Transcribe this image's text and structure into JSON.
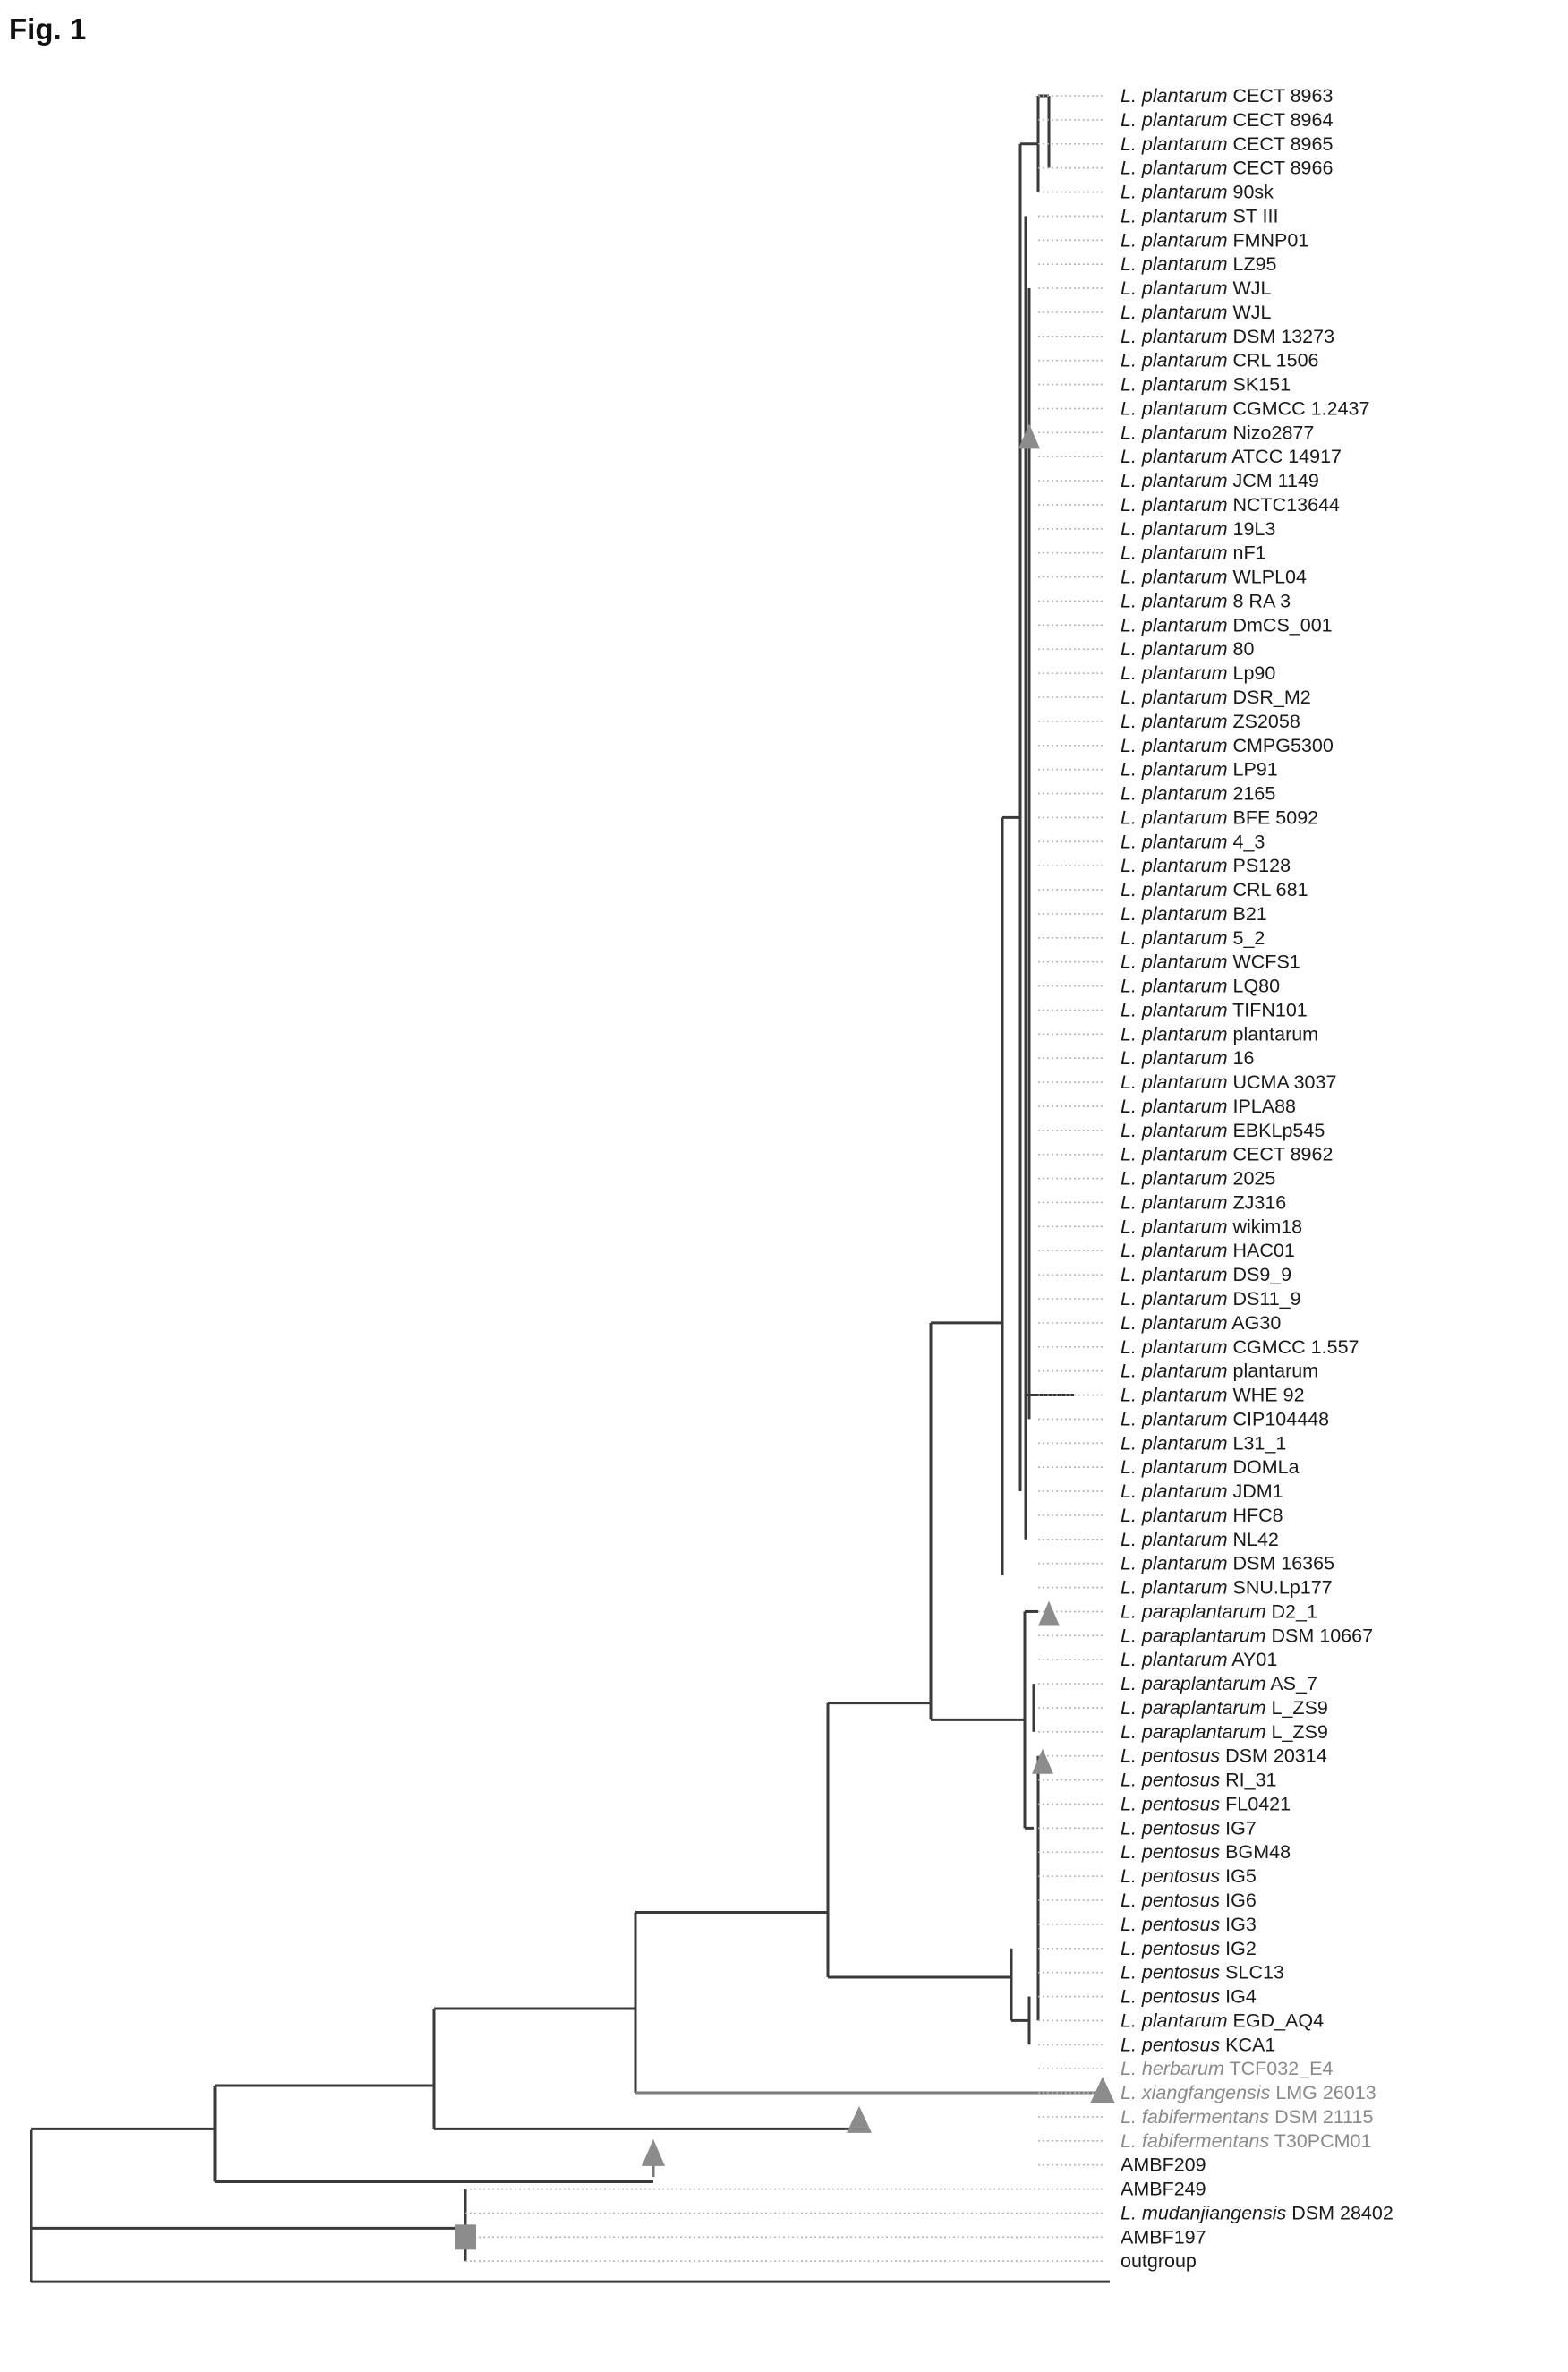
{
  "figure": {
    "title": "Fig. 1"
  },
  "tree": {
    "type": "phylogenetic-tree",
    "highlight_color": "#8c8c8c",
    "tips": [
      {
        "genus": "L.",
        "species": "plantarum",
        "strain": "CECT 8963"
      },
      {
        "genus": "L.",
        "species": "plantarum",
        "strain": "CECT 8964"
      },
      {
        "genus": "L.",
        "species": "plantarum",
        "strain": "CECT 8965"
      },
      {
        "genus": "L.",
        "species": "plantarum",
        "strain": "CECT 8966"
      },
      {
        "genus": "L.",
        "species": "plantarum",
        "strain": "90sk"
      },
      {
        "genus": "L.",
        "species": "plantarum",
        "strain": "ST III"
      },
      {
        "genus": "L.",
        "species": "plantarum",
        "strain": "FMNP01"
      },
      {
        "genus": "L.",
        "species": "plantarum",
        "strain": "LZ95"
      },
      {
        "genus": "L.",
        "species": "plantarum",
        "strain": "WJL"
      },
      {
        "genus": "L.",
        "species": "plantarum",
        "strain": "WJL"
      },
      {
        "genus": "L.",
        "species": "plantarum",
        "strain": "DSM 13273"
      },
      {
        "genus": "L.",
        "species": "plantarum",
        "strain": "CRL 1506"
      },
      {
        "genus": "L.",
        "species": "plantarum",
        "strain": "SK151"
      },
      {
        "genus": "L.",
        "species": "plantarum",
        "strain": "CGMCC 1.2437"
      },
      {
        "genus": "L.",
        "species": "plantarum",
        "strain": "Nizo2877"
      },
      {
        "genus": "L.",
        "species": "plantarum",
        "strain": "ATCC 14917"
      },
      {
        "genus": "L.",
        "species": "plantarum",
        "strain": "JCM 1149"
      },
      {
        "genus": "L.",
        "species": "plantarum",
        "strain": "NCTC13644"
      },
      {
        "genus": "L.",
        "species": "plantarum",
        "strain": "19L3"
      },
      {
        "genus": "L.",
        "species": "plantarum",
        "strain": "nF1"
      },
      {
        "genus": "L.",
        "species": "plantarum",
        "strain": "WLPL04"
      },
      {
        "genus": "L.",
        "species": "plantarum",
        "strain": "8 RA 3"
      },
      {
        "genus": "L.",
        "species": "plantarum",
        "strain": "DmCS_001"
      },
      {
        "genus": "L.",
        "species": "plantarum",
        "strain": "80"
      },
      {
        "genus": "L.",
        "species": "plantarum",
        "strain": "Lp90"
      },
      {
        "genus": "L.",
        "species": "plantarum",
        "strain": "DSR_M2"
      },
      {
        "genus": "L.",
        "species": "plantarum",
        "strain": "ZS2058"
      },
      {
        "genus": "L.",
        "species": "plantarum",
        "strain": "CMPG5300"
      },
      {
        "genus": "L.",
        "species": "plantarum",
        "strain": "LP91"
      },
      {
        "genus": "L.",
        "species": "plantarum",
        "strain": "2165"
      },
      {
        "genus": "L.",
        "species": "plantarum",
        "strain": "BFE 5092"
      },
      {
        "genus": "L.",
        "species": "plantarum",
        "strain": "4_3"
      },
      {
        "genus": "L.",
        "species": "plantarum",
        "strain": "PS128"
      },
      {
        "genus": "L.",
        "species": "plantarum",
        "strain": "CRL 681"
      },
      {
        "genus": "L.",
        "species": "plantarum",
        "strain": "B21"
      },
      {
        "genus": "L.",
        "species": "plantarum",
        "strain": "5_2"
      },
      {
        "genus": "L.",
        "species": "plantarum",
        "strain": "WCFS1"
      },
      {
        "genus": "L.",
        "species": "plantarum",
        "strain": "LQ80"
      },
      {
        "genus": "L.",
        "species": "plantarum",
        "strain": "TIFN101"
      },
      {
        "genus": "L.",
        "species": "plantarum",
        "strain": "plantarum"
      },
      {
        "genus": "L.",
        "species": "plantarum",
        "strain": "16"
      },
      {
        "genus": "L.",
        "species": "plantarum",
        "strain": "UCMA 3037"
      },
      {
        "genus": "L.",
        "species": "plantarum",
        "strain": "IPLA88"
      },
      {
        "genus": "L.",
        "species": "plantarum",
        "strain": "EBKLp545"
      },
      {
        "genus": "L.",
        "species": "plantarum",
        "strain": "CECT 8962"
      },
      {
        "genus": "L.",
        "species": "plantarum",
        "strain": "2025"
      },
      {
        "genus": "L.",
        "species": "plantarum",
        "strain": "ZJ316"
      },
      {
        "genus": "L.",
        "species": "plantarum",
        "strain": "wikim18"
      },
      {
        "genus": "L.",
        "species": "plantarum",
        "strain": "HAC01"
      },
      {
        "genus": "L.",
        "species": "plantarum",
        "strain": "DS9_9"
      },
      {
        "genus": "L.",
        "species": "plantarum",
        "strain": "DS11_9"
      },
      {
        "genus": "L.",
        "species": "plantarum",
        "strain": "AG30"
      },
      {
        "genus": "L.",
        "species": "plantarum",
        "strain": "CGMCC 1.557"
      },
      {
        "genus": "L.",
        "species": "plantarum",
        "strain": "plantarum"
      },
      {
        "genus": "L.",
        "species": "plantarum",
        "strain": "WHE 92"
      },
      {
        "genus": "L.",
        "species": "plantarum",
        "strain": "CIP104448"
      },
      {
        "genus": "L.",
        "species": "plantarum",
        "strain": "L31_1"
      },
      {
        "genus": "L.",
        "species": "plantarum",
        "strain": "DOMLa"
      },
      {
        "genus": "L.",
        "species": "plantarum",
        "strain": "JDM1"
      },
      {
        "genus": "L.",
        "species": "plantarum",
        "strain": "HFC8"
      },
      {
        "genus": "L.",
        "species": "plantarum",
        "strain": "NL42"
      },
      {
        "genus": "L.",
        "species": "plantarum",
        "strain": "DSM 16365"
      },
      {
        "genus": "L.",
        "species": "plantarum",
        "strain": "SNU.Lp177"
      },
      {
        "genus": "L.",
        "species": "paraplantarum",
        "strain": "D2_1"
      },
      {
        "genus": "L.",
        "species": "paraplantarum",
        "strain": "DSM 10667"
      },
      {
        "genus": "L.",
        "species": "plantarum",
        "strain": "AY01"
      },
      {
        "genus": "L.",
        "species": "paraplantarum",
        "strain": "AS_7"
      },
      {
        "genus": "L.",
        "species": "paraplantarum",
        "strain": "L_ZS9"
      },
      {
        "genus": "L.",
        "species": "paraplantarum",
        "strain": "L_ZS9"
      },
      {
        "genus": "L.",
        "species": "pentosus",
        "strain": "DSM 20314"
      },
      {
        "genus": "L.",
        "species": "pentosus",
        "strain": "RI_31"
      },
      {
        "genus": "L.",
        "species": "pentosus",
        "strain": "FL0421"
      },
      {
        "genus": "L.",
        "species": "pentosus",
        "strain": "IG7"
      },
      {
        "genus": "L.",
        "species": "pentosus",
        "strain": "BGM48"
      },
      {
        "genus": "L.",
        "species": "pentosus",
        "strain": "IG5"
      },
      {
        "genus": "L.",
        "species": "pentosus",
        "strain": "IG6"
      },
      {
        "genus": "L.",
        "species": "pentosus",
        "strain": "IG3"
      },
      {
        "genus": "L.",
        "species": "pentosus",
        "strain": "IG2"
      },
      {
        "genus": "L.",
        "species": "pentosus",
        "strain": "SLC13"
      },
      {
        "genus": "L.",
        "species": "pentosus",
        "strain": "IG4"
      },
      {
        "genus": "L.",
        "species": "plantarum",
        "strain": "EGD_AQ4"
      },
      {
        "genus": "L.",
        "species": "pentosus",
        "strain": "KCA1"
      },
      {
        "genus": "L.",
        "species": "herbarum",
        "strain": "TCF032_E4",
        "grey": true
      },
      {
        "genus": "L.",
        "species": "xiangfangensis",
        "strain": "LMG 26013",
        "grey": true
      },
      {
        "genus": "L.",
        "species": "fabifermentans",
        "strain": "DSM 21115",
        "grey": true
      },
      {
        "genus": "L.",
        "species": "fabifermentans",
        "strain": "T30PCM01",
        "grey": true
      },
      {
        "genus": "",
        "species": "",
        "strain": "AMBF209"
      },
      {
        "genus": "",
        "species": "",
        "strain": "AMBF249"
      },
      {
        "genus": "L.",
        "species": "mudanjiangensis",
        "strain": "DSM 28402"
      },
      {
        "genus": "",
        "species": "",
        "strain": "AMBF197"
      },
      {
        "genus": "",
        "species": "",
        "strain": "outgroup"
      }
    ]
  }
}
